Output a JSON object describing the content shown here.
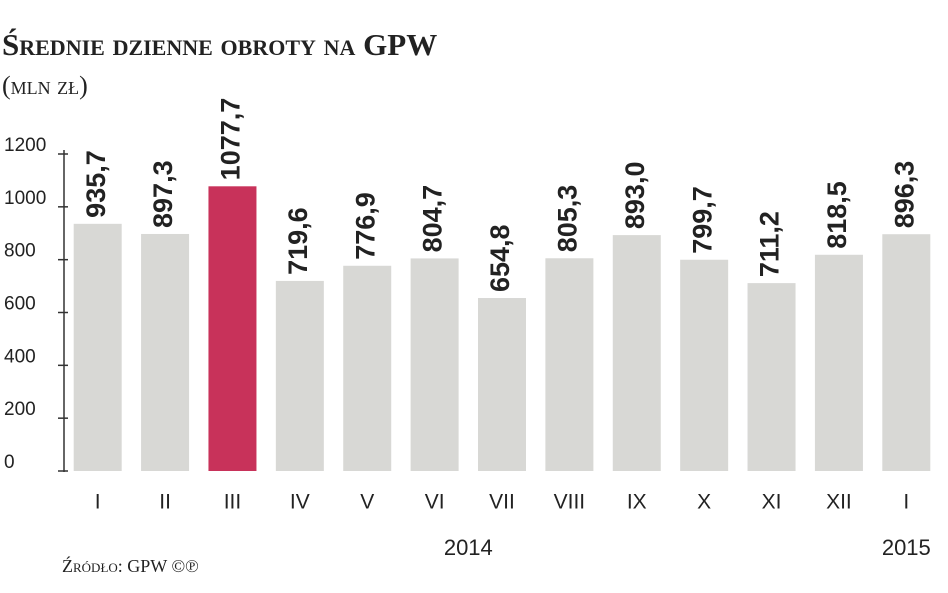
{
  "chart_data": {
    "type": "bar",
    "title": "Średnie dzienne obroty na GPW",
    "subtitle": "(mln zł)",
    "source": "Źródło: GPW ©℗",
    "categories": [
      "I",
      "II",
      "III",
      "IV",
      "V",
      "VI",
      "VII",
      "VIII",
      "IX",
      "X",
      "XI",
      "XII",
      "I"
    ],
    "values": [
      935.7,
      897.3,
      1077.7,
      719.6,
      776.9,
      804.7,
      654.8,
      805.3,
      893.0,
      799.7,
      711.2,
      818.5,
      896.3
    ],
    "value_labels": [
      "935,7",
      "897,3",
      "1077,7",
      "719,6",
      "776,9",
      "804,7",
      "654,8",
      "805,3",
      "893,0",
      "799,7",
      "711,2",
      "818,5",
      "896,3"
    ],
    "colors": [
      "#d8d8d5",
      "#d8d8d5",
      "#c8325a",
      "#d8d8d5",
      "#d8d8d5",
      "#d8d8d5",
      "#d8d8d5",
      "#d8d8d5",
      "#d8d8d5",
      "#d8d8d5",
      "#d8d8d5",
      "#d8d8d5",
      "#d8d8d5"
    ],
    "x_groups": [
      {
        "label": "2014",
        "span": [
          0,
          11
        ]
      },
      {
        "label": "2015",
        "span": [
          12,
          12
        ]
      }
    ],
    "ylim": [
      0,
      1200
    ],
    "yticks": [
      0,
      200,
      400,
      600,
      800,
      1000,
      1200
    ]
  }
}
